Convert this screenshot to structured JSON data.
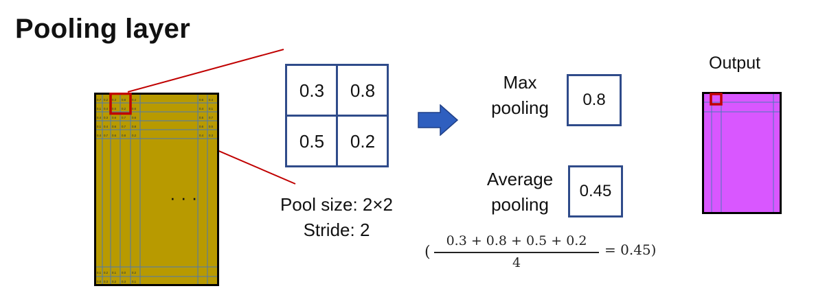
{
  "title": "Pooling layer",
  "input_map": {
    "rows": [
      [
        "0.7",
        "0.2",
        "0.3",
        "0.8",
        "0.4",
        "0.6",
        "0.4"
      ],
      [
        "0.1",
        "0.4",
        "0.5",
        "0.2",
        "0.6",
        "0.4",
        "0.1"
      ],
      [
        "0.4",
        "0.3",
        "0.6",
        "0.7",
        "0.6",
        "0.5",
        "0.7"
      ],
      [
        "0.1",
        "0.4",
        "0.6",
        "0.7",
        "0.8",
        "0.6",
        "0.5"
      ],
      [
        "0.4",
        "0.7",
        "0.6",
        "0.8",
        "0.2",
        "0.4",
        "0.3"
      ]
    ],
    "bottom_rows": [
      [
        "0.1",
        "0.2",
        "0.1",
        "0.0",
        "0.2"
      ],
      [
        "0.0",
        "0.3",
        "0.2",
        "0.3",
        "0.1"
      ]
    ],
    "ellipsis": "· · ·",
    "fill_color": "#b89a00"
  },
  "pool_window": {
    "cells": [
      "0.3",
      "0.8",
      "0.5",
      "0.2"
    ],
    "pool_size_text": "Pool size: 2×2",
    "stride_text": "Stride: 2",
    "border_color": "#2f4b8a"
  },
  "arrow_color": "#2f5fbf",
  "max_pooling": {
    "label_line1": "Max",
    "label_line2": "pooling",
    "value": "0.8"
  },
  "average_pooling": {
    "label_line1": "Average",
    "label_line2": "pooling",
    "value": "0.45",
    "formula_open": "(",
    "formula_numerator": "0.3 + 0.8 + 0.5 + 0.2",
    "formula_denominator": "4",
    "formula_result": "= 0.45)"
  },
  "output": {
    "label": "Output",
    "fill_color": "#d957ff",
    "highlight_color": "#c00000"
  }
}
